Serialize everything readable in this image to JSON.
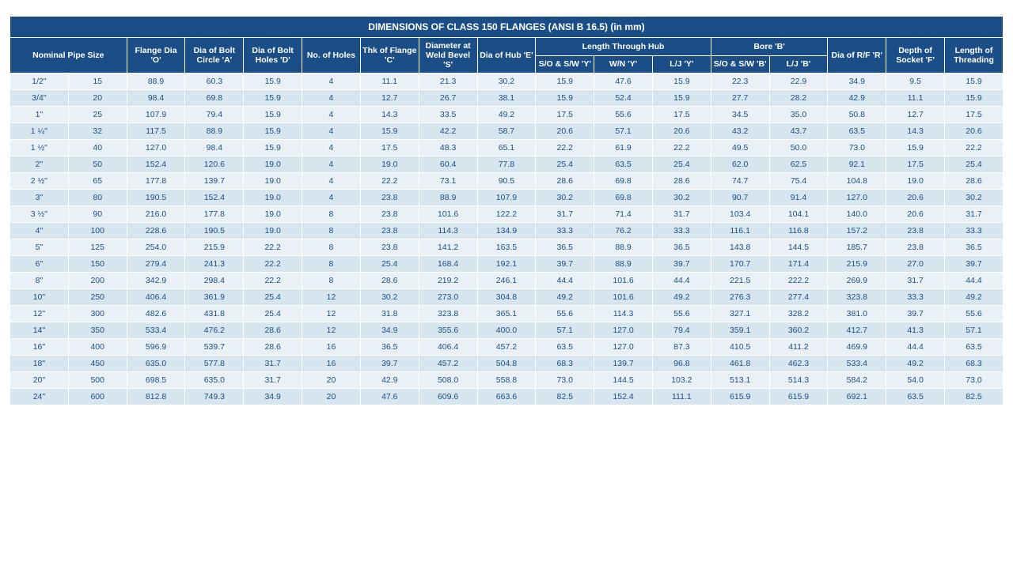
{
  "title": "DIMENSIONS OF CLASS 150 FLANGES (ANSI B 16.5) (in mm)",
  "groupHeaders": {
    "hub": "Length Through Hub",
    "bore": "Bore 'B'"
  },
  "headers": {
    "nps": "Nominal Pipe Size",
    "flangeDia": "Flange Dia 'O'",
    "boltCircle": "Dia of Bolt Circle 'A'",
    "boltHoles": "Dia of Bolt Holes 'D'",
    "noHoles": "No. of Holes",
    "thkFlange": "Thk of Flange 'C'",
    "weldBevel": "Diameter at Weld Bevel 'S'",
    "diaHub": "Dia of Hub 'E'",
    "hubSO": "S/O & S/W 'Y'",
    "hubWN": "W/N 'Y'",
    "hubLJ": "L/J 'Y'",
    "boreSO": "S/O & S/W 'B'",
    "boreLJ": "L/J 'B'",
    "diaRF": "Dia of R/F 'R'",
    "depthSocket": "Depth of Socket 'F'",
    "lenThread": "Length of Threading"
  },
  "rows": [
    {
      "nps1": "1/2\"",
      "nps2": "15",
      "o": "88.9",
      "a": "60.3",
      "d": "15.9",
      "n": "4",
      "c": "11.1",
      "s": "21.3",
      "e": "30.2",
      "hy1": "15.9",
      "hy2": "47.6",
      "hy3": "15.9",
      "b1": "22.3",
      "b2": "22.9",
      "r": "34.9",
      "f": "9.5",
      "t": "15.9"
    },
    {
      "nps1": "3/4\"",
      "nps2": "20",
      "o": "98.4",
      "a": "69.8",
      "d": "15.9",
      "n": "4",
      "c": "12.7",
      "s": "26.7",
      "e": "38.1",
      "hy1": "15.9",
      "hy2": "52.4",
      "hy3": "15.9",
      "b1": "27.7",
      "b2": "28.2",
      "r": "42.9",
      "f": "11.1",
      "t": "15.9"
    },
    {
      "nps1": "1\"",
      "nps2": "25",
      "o": "107.9",
      "a": "79.4",
      "d": "15.9",
      "n": "4",
      "c": "14.3",
      "s": "33.5",
      "e": "49.2",
      "hy1": "17.5",
      "hy2": "55.6",
      "hy3": "17.5",
      "b1": "34.5",
      "b2": "35.0",
      "r": "50.8",
      "f": "12.7",
      "t": "17.5"
    },
    {
      "nps1": "1 ¼\"",
      "nps2": "32",
      "o": "117.5",
      "a": "88.9",
      "d": "15.9",
      "n": "4",
      "c": "15.9",
      "s": "42.2",
      "e": "58.7",
      "hy1": "20.6",
      "hy2": "57.1",
      "hy3": "20.6",
      "b1": "43.2",
      "b2": "43.7",
      "r": "63.5",
      "f": "14.3",
      "t": "20.6"
    },
    {
      "nps1": "1 ½\"",
      "nps2": "40",
      "o": "127.0",
      "a": "98.4",
      "d": "15.9",
      "n": "4",
      "c": "17.5",
      "s": "48.3",
      "e": "65.1",
      "hy1": "22.2",
      "hy2": "61.9",
      "hy3": "22.2",
      "b1": "49.5",
      "b2": "50.0",
      "r": "73.0",
      "f": "15.9",
      "t": "22.2"
    },
    {
      "nps1": "2\"",
      "nps2": "50",
      "o": "152.4",
      "a": "120.6",
      "d": "19.0",
      "n": "4",
      "c": "19.0",
      "s": "60.4",
      "e": "77.8",
      "hy1": "25.4",
      "hy2": "63.5",
      "hy3": "25.4",
      "b1": "62.0",
      "b2": "62.5",
      "r": "92.1",
      "f": "17.5",
      "t": "25.4"
    },
    {
      "nps1": "2 ½\"",
      "nps2": "65",
      "o": "177.8",
      "a": "139.7",
      "d": "19.0",
      "n": "4",
      "c": "22.2",
      "s": "73.1",
      "e": "90.5",
      "hy1": "28.6",
      "hy2": "69.8",
      "hy3": "28.6",
      "b1": "74.7",
      "b2": "75.4",
      "r": "104.8",
      "f": "19.0",
      "t": "28.6"
    },
    {
      "nps1": "3\"",
      "nps2": "80",
      "o": "190.5",
      "a": "152.4",
      "d": "19.0",
      "n": "4",
      "c": "23.8",
      "s": "88.9",
      "e": "107.9",
      "hy1": "30.2",
      "hy2": "69.8",
      "hy3": "30.2",
      "b1": "90.7",
      "b2": "91.4",
      "r": "127.0",
      "f": "20.6",
      "t": "30.2"
    },
    {
      "nps1": "3 ½\"",
      "nps2": "90",
      "o": "216.0",
      "a": "177.8",
      "d": "19.0",
      "n": "8",
      "c": "23.8",
      "s": "101.6",
      "e": "122.2",
      "hy1": "31.7",
      "hy2": "71.4",
      "hy3": "31.7",
      "b1": "103.4",
      "b2": "104.1",
      "r": "140.0",
      "f": "20.6",
      "t": "31.7"
    },
    {
      "nps1": "4\"",
      "nps2": "100",
      "o": "228.6",
      "a": "190.5",
      "d": "19.0",
      "n": "8",
      "c": "23.8",
      "s": "114.3",
      "e": "134.9",
      "hy1": "33.3",
      "hy2": "76.2",
      "hy3": "33.3",
      "b1": "116.1",
      "b2": "116.8",
      "r": "157.2",
      "f": "23.8",
      "t": "33.3"
    },
    {
      "nps1": "5\"",
      "nps2": "125",
      "o": "254.0",
      "a": "215.9",
      "d": "22.2",
      "n": "8",
      "c": "23.8",
      "s": "141.2",
      "e": "163.5",
      "hy1": "36.5",
      "hy2": "88.9",
      "hy3": "36.5",
      "b1": "143.8",
      "b2": "144.5",
      "r": "185.7",
      "f": "23.8",
      "t": "36.5"
    },
    {
      "nps1": "6\"",
      "nps2": "150",
      "o": "279.4",
      "a": "241.3",
      "d": "22.2",
      "n": "8",
      "c": "25.4",
      "s": "168.4",
      "e": "192.1",
      "hy1": "39.7",
      "hy2": "88.9",
      "hy3": "39.7",
      "b1": "170.7",
      "b2": "171.4",
      "r": "215.9",
      "f": "27.0",
      "t": "39.7"
    },
    {
      "nps1": "8\"",
      "nps2": "200",
      "o": "342.9",
      "a": "298.4",
      "d": "22.2",
      "n": "8",
      "c": "28.6",
      "s": "219.2",
      "e": "246.1",
      "hy1": "44.4",
      "hy2": "101.6",
      "hy3": "44.4",
      "b1": "221.5",
      "b2": "222.2",
      "r": "269.9",
      "f": "31.7",
      "t": "44.4"
    },
    {
      "nps1": "10\"",
      "nps2": "250",
      "o": "406.4",
      "a": "361.9",
      "d": "25.4",
      "n": "12",
      "c": "30.2",
      "s": "273.0",
      "e": "304.8",
      "hy1": "49.2",
      "hy2": "101.6",
      "hy3": "49.2",
      "b1": "276.3",
      "b2": "277.4",
      "r": "323.8",
      "f": "33.3",
      "t": "49.2"
    },
    {
      "nps1": "12\"",
      "nps2": "300",
      "o": "482.6",
      "a": "431.8",
      "d": "25.4",
      "n": "12",
      "c": "31.8",
      "s": "323.8",
      "e": "365.1",
      "hy1": "55.6",
      "hy2": "114.3",
      "hy3": "55.6",
      "b1": "327.1",
      "b2": "328.2",
      "r": "381.0",
      "f": "39.7",
      "t": "55.6"
    },
    {
      "nps1": "14\"",
      "nps2": "350",
      "o": "533.4",
      "a": "476.2",
      "d": "28.6",
      "n": "12",
      "c": "34.9",
      "s": "355.6",
      "e": "400.0",
      "hy1": "57.1",
      "hy2": "127.0",
      "hy3": "79.4",
      "b1": "359.1",
      "b2": "360.2",
      "r": "412.7",
      "f": "41.3",
      "t": "57.1"
    },
    {
      "nps1": "16\"",
      "nps2": "400",
      "o": "596.9",
      "a": "539.7",
      "d": "28.6",
      "n": "16",
      "c": "36.5",
      "s": "406.4",
      "e": "457.2",
      "hy1": "63.5",
      "hy2": "127.0",
      "hy3": "87.3",
      "b1": "410.5",
      "b2": "411.2",
      "r": "469.9",
      "f": "44.4",
      "t": "63.5"
    },
    {
      "nps1": "18\"",
      "nps2": "450",
      "o": "635.0",
      "a": "577.8",
      "d": "31.7",
      "n": "16",
      "c": "39.7",
      "s": "457.2",
      "e": "504.8",
      "hy1": "68.3",
      "hy2": "139.7",
      "hy3": "96.8",
      "b1": "461.8",
      "b2": "462.3",
      "r": "533.4",
      "f": "49.2",
      "t": "68.3"
    },
    {
      "nps1": "20\"",
      "nps2": "500",
      "o": "698.5",
      "a": "635.0",
      "d": "31.7",
      "n": "20",
      "c": "42.9",
      "s": "508.0",
      "e": "558.8",
      "hy1": "73.0",
      "hy2": "144.5",
      "hy3": "103.2",
      "b1": "513.1",
      "b2": "514.3",
      "r": "584.2",
      "f": "54.0",
      "t": "73.0"
    },
    {
      "nps1": "24\"",
      "nps2": "600",
      "o": "812.8",
      "a": "749.3",
      "d": "34.9",
      "n": "20",
      "c": "47.6",
      "s": "609.6",
      "e": "663.6",
      "hy1": "82.5",
      "hy2": "152.4",
      "hy3": "111.1",
      "b1": "615.9",
      "b2": "615.9",
      "r": "692.1",
      "f": "63.5",
      "t": "82.5"
    }
  ],
  "colors": {
    "headerBg": "#1b4e86",
    "headerText": "#ffffff",
    "rowOdd": "#e9f1f6",
    "rowEven": "#d7e5ef",
    "cellText": "#1b4e86",
    "border": "#ffffff"
  }
}
